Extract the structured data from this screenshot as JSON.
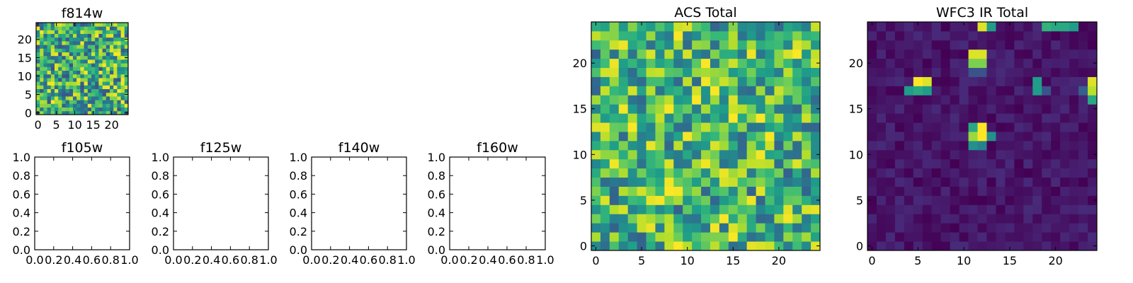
{
  "chart_data": [
    {
      "id": "f814w",
      "type": "heatmap",
      "title": "f814w",
      "colormap": "viridis",
      "grid_size": 25,
      "xlim": [
        -0.5,
        24.5
      ],
      "ylim": [
        -0.5,
        24.5
      ],
      "xticks": [
        0,
        5,
        10,
        15,
        20
      ],
      "yticks": [
        0,
        5,
        10,
        15,
        20
      ],
      "pattern": "noise",
      "low": 0.25,
      "high": 1.0,
      "seed": 17
    },
    {
      "id": "f105w",
      "type": "empty",
      "title": "f105w",
      "xlim": [
        0,
        1
      ],
      "ylim": [
        0,
        1
      ],
      "xticks": [
        "0.0",
        "0.2",
        "0.4",
        "0.6",
        "0.8",
        "1.0"
      ],
      "yticks": [
        "0.0",
        "0.2",
        "0.4",
        "0.6",
        "0.8",
        "1.0"
      ]
    },
    {
      "id": "f125w",
      "type": "empty",
      "title": "f125w",
      "xlim": [
        0,
        1
      ],
      "ylim": [
        0,
        1
      ],
      "xticks": [
        "0.0",
        "0.2",
        "0.4",
        "0.6",
        "0.8",
        "1.0"
      ],
      "yticks": [
        "0.0",
        "0.2",
        "0.4",
        "0.6",
        "0.8",
        "1.0"
      ]
    },
    {
      "id": "f140w",
      "type": "empty",
      "title": "f140w",
      "xlim": [
        0,
        1
      ],
      "ylim": [
        0,
        1
      ],
      "xticks": [
        "0.0",
        "0.2",
        "0.4",
        "0.6",
        "0.8",
        "1.0"
      ],
      "yticks": [
        "0.0",
        "0.2",
        "0.4",
        "0.6",
        "0.8",
        "1.0"
      ]
    },
    {
      "id": "f160w",
      "type": "empty",
      "title": "f160w",
      "xlim": [
        0,
        1
      ],
      "ylim": [
        0,
        1
      ],
      "xticks": [
        "0.0",
        "0.2",
        "0.4",
        "0.6",
        "0.8",
        "1.0"
      ],
      "yticks": [
        "0.0",
        "0.2",
        "0.4",
        "0.6",
        "0.8",
        "1.0"
      ]
    },
    {
      "id": "acs",
      "type": "heatmap",
      "title": "ACS Total",
      "colormap": "viridis",
      "grid_size": 25,
      "xlim": [
        -0.5,
        24.5
      ],
      "ylim": [
        -0.5,
        24.5
      ],
      "xticks": [
        0,
        5,
        10,
        15,
        20
      ],
      "yticks": [
        0,
        5,
        10,
        15,
        20
      ],
      "pattern": "noise",
      "low": 0.3,
      "high": 1.0,
      "seed": 42
    },
    {
      "id": "wfc3",
      "type": "heatmap",
      "title": "WFC3 IR Total",
      "colormap": "viridis",
      "grid_size": 25,
      "xlim": [
        -0.5,
        24.5
      ],
      "ylim": [
        -0.5,
        24.5
      ],
      "xticks": [
        0,
        5,
        10,
        15,
        20
      ],
      "yticks": [
        0,
        5,
        10,
        15,
        20
      ],
      "pattern": "sources",
      "background_low": 0.0,
      "background_high": 0.12,
      "seed": 7,
      "bright_cells": [
        {
          "x": 12,
          "y": 24,
          "value": 0.95
        },
        {
          "x": 13,
          "y": 24,
          "value": 0.55
        },
        {
          "x": 19,
          "y": 24,
          "value": 0.65
        },
        {
          "x": 20,
          "y": 24,
          "value": 0.6
        },
        {
          "x": 21,
          "y": 24,
          "value": 0.6
        },
        {
          "x": 22,
          "y": 24,
          "value": 0.55
        },
        {
          "x": 11,
          "y": 21,
          "value": 0.95
        },
        {
          "x": 12,
          "y": 21,
          "value": 0.95
        },
        {
          "x": 11,
          "y": 20,
          "value": 0.8
        },
        {
          "x": 12,
          "y": 20,
          "value": 0.8
        },
        {
          "x": 11,
          "y": 19,
          "value": 0.25
        },
        {
          "x": 12,
          "y": 19,
          "value": 0.25
        },
        {
          "x": 5,
          "y": 18,
          "value": 1.0
        },
        {
          "x": 6,
          "y": 18,
          "value": 0.95
        },
        {
          "x": 4,
          "y": 17,
          "value": 0.55
        },
        {
          "x": 5,
          "y": 17,
          "value": 0.6
        },
        {
          "x": 6,
          "y": 17,
          "value": 0.55
        },
        {
          "x": 18,
          "y": 18,
          "value": 0.55
        },
        {
          "x": 18,
          "y": 17,
          "value": 0.55
        },
        {
          "x": 19,
          "y": 17,
          "value": 0.25
        },
        {
          "x": 24,
          "y": 18,
          "value": 0.95
        },
        {
          "x": 24,
          "y": 17,
          "value": 0.9
        },
        {
          "x": 24,
          "y": 16,
          "value": 0.6
        },
        {
          "x": 23,
          "y": 17,
          "value": 0.3
        },
        {
          "x": 11,
          "y": 13,
          "value": 0.6
        },
        {
          "x": 12,
          "y": 13,
          "value": 1.0
        },
        {
          "x": 11,
          "y": 12,
          "value": 0.85
        },
        {
          "x": 12,
          "y": 12,
          "value": 1.0
        },
        {
          "x": 13,
          "y": 12,
          "value": 0.5
        },
        {
          "x": 11,
          "y": 11,
          "value": 0.5
        },
        {
          "x": 12,
          "y": 11,
          "value": 0.45
        }
      ]
    }
  ]
}
